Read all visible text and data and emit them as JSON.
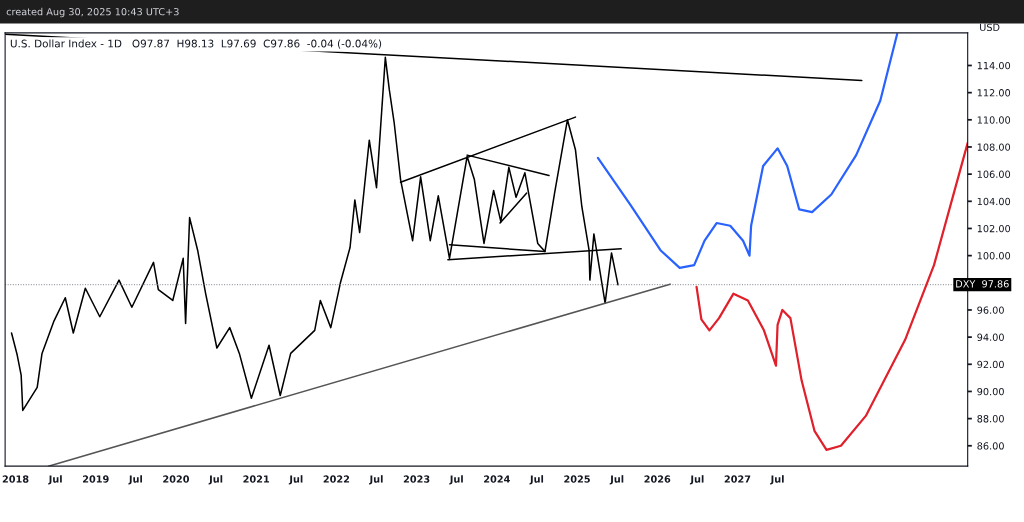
{
  "chart_data": {
    "type": "line",
    "title": "U.S. Dollar Index - 1D   O97.87  H98.13  L97.69  C97.86  -0.04 (-0.04%)",
    "ylabel": "USD",
    "annotations": [
      "created Aug 30, 2025 10:43 UTC+3"
    ],
    "xlim": [
      2017.87,
      2029.87
    ],
    "ylim": [
      84.5,
      116.4
    ],
    "xticks": [
      {
        "value": 2018,
        "label": "2018"
      },
      {
        "value": 2018.5,
        "label": "Jul"
      },
      {
        "value": 2019,
        "label": "2019"
      },
      {
        "value": 2019.5,
        "label": "Jul"
      },
      {
        "value": 2020,
        "label": "2020"
      },
      {
        "value": 2020.5,
        "label": "Jul"
      },
      {
        "value": 2021,
        "label": "2021"
      },
      {
        "value": 2021.5,
        "label": "Jul"
      },
      {
        "value": 2022,
        "label": "2022"
      },
      {
        "value": 2022.5,
        "label": "Jul"
      },
      {
        "value": 2023,
        "label": "2023"
      },
      {
        "value": 2023.5,
        "label": "Jul"
      },
      {
        "value": 2024,
        "label": "2024"
      },
      {
        "value": 2024.5,
        "label": "Jul"
      },
      {
        "value": 2025,
        "label": "2025"
      },
      {
        "value": 2025.5,
        "label": "Jul"
      },
      {
        "value": 2026,
        "label": "2026"
      },
      {
        "value": 2026.5,
        "label": "Jul"
      },
      {
        "value": 2027,
        "label": "2027"
      },
      {
        "value": 2027.5,
        "label": "Jul"
      }
    ],
    "yticks": [
      {
        "value": 86,
        "label": "86.00"
      },
      {
        "value": 88,
        "label": "88.00"
      },
      {
        "value": 90,
        "label": "90.00"
      },
      {
        "value": 92,
        "label": "92.00"
      },
      {
        "value": 94,
        "label": "94.00"
      },
      {
        "value": 96,
        "label": "96.00"
      },
      {
        "value": 100,
        "label": "100.00"
      },
      {
        "value": 102,
        "label": "102.00"
      },
      {
        "value": 104,
        "label": "104.00"
      },
      {
        "value": 106,
        "label": "106.00"
      },
      {
        "value": 108,
        "label": "108.00"
      },
      {
        "value": 110,
        "label": "110.00"
      },
      {
        "value": 112,
        "label": "112.00"
      },
      {
        "value": 114,
        "label": "114.00"
      }
    ],
    "grid": false,
    "legend": false,
    "ref_lines": [
      {
        "axis": "y",
        "value": 97.86,
        "label": "DXY  97.86",
        "line_style": "dotted",
        "color": "#787b86"
      }
    ],
    "series": [
      {
        "color": "#000000",
        "x": [
          2017.95,
          2018.02,
          2018.07,
          2018.09,
          2018.27,
          2018.33,
          2018.48,
          2018.62,
          2018.72,
          2018.87,
          2019.05,
          2019.29,
          2019.45,
          2019.72,
          2019.78,
          2019.96,
          2020.09,
          2020.12,
          2020.17,
          2020.27,
          2020.37,
          2020.51,
          2020.67,
          2020.79,
          2020.94,
          2021.16,
          2021.3,
          2021.43,
          2021.73,
          2021.8,
          2021.93,
          2022.05,
          2022.17,
          2022.23,
          2022.29,
          2022.41,
          2022.5,
          2022.61,
          2022.66,
          2022.72,
          2022.8,
          2022.95,
          2023.05,
          2023.17,
          2023.27,
          2023.41,
          2023.63,
          2023.72,
          2023.84,
          2023.96,
          2024.05,
          2024.15,
          2024.24,
          2024.35,
          2024.51,
          2024.6,
          2024.72,
          2024.88,
          2024.98,
          2025.06,
          2025.15,
          2025.16,
          2025.21,
          2025.35,
          2025.43,
          2025.51
        ],
        "values": [
          94.3,
          92.7,
          91.2,
          88.6,
          90.3,
          92.8,
          95.2,
          96.9,
          94.3,
          97.6,
          95.5,
          98.2,
          96.2,
          99.5,
          97.5,
          96.7,
          99.8,
          95.0,
          102.8,
          100.4,
          97.2,
          93.2,
          94.7,
          92.8,
          89.5,
          93.4,
          89.7,
          92.8,
          94.5,
          96.7,
          94.7,
          98.0,
          100.6,
          104.1,
          101.7,
          108.5,
          105.0,
          114.6,
          112.2,
          109.8,
          105.6,
          101.1,
          105.8,
          101.1,
          104.4,
          99.8,
          107.3,
          105.6,
          100.9,
          104.8,
          102.5,
          106.5,
          104.3,
          106.1,
          100.9,
          100.3,
          104.6,
          110.0,
          107.8,
          103.6,
          100.4,
          98.2,
          101.6,
          96.5,
          100.2,
          97.86
        ]
      },
      {
        "color": "#000000",
        "x": [
          2017.87,
          2028.55
        ],
        "values": [
          116.3,
          112.9
        ]
      },
      {
        "color": "#555555",
        "x": [
          2018.41,
          2026.16
        ],
        "values": [
          84.5,
          97.9
        ]
      },
      {
        "color": "#000000",
        "x": [
          2022.8,
          2024.98
        ],
        "values": [
          105.4,
          110.2
        ]
      },
      {
        "color": "#000000",
        "x": [
          2023.39,
          2025.55
        ],
        "values": [
          99.7,
          100.5
        ]
      },
      {
        "color": "#000000",
        "x": [
          2023.63,
          2024.65
        ],
        "values": [
          107.4,
          105.9
        ]
      },
      {
        "color": "#000000",
        "x": [
          2023.41,
          2024.6
        ],
        "values": [
          100.8,
          100.3
        ]
      },
      {
        "color": "#000000",
        "x": [
          2024.04,
          2024.37
        ],
        "values": [
          102.4,
          104.6
        ]
      },
      {
        "color": "#2962ff",
        "x": [
          2025.26,
          2025.67,
          2026.04,
          2026.28,
          2026.46,
          2026.59,
          2026.74,
          2026.91,
          2027.07,
          2027.15,
          2027.17,
          2027.32,
          2027.5,
          2027.62,
          2027.77,
          2027.93,
          2028.17,
          2028.48,
          2028.78,
          2028.99
        ],
        "values": [
          107.2,
          103.7,
          100.4,
          99.1,
          99.3,
          101.1,
          102.4,
          102.2,
          101.1,
          100.0,
          102.2,
          106.6,
          107.9,
          106.6,
          103.4,
          103.2,
          104.5,
          107.4,
          111.4,
          116.3
        ]
      },
      {
        "color": "#e0202a",
        "x": [
          2026.49,
          2026.55,
          2026.65,
          2026.77,
          2026.95,
          2027.13,
          2027.33,
          2027.48,
          2027.5,
          2027.56,
          2027.66,
          2027.8,
          2027.96,
          2028.11,
          2028.29,
          2028.6,
          2029.09,
          2029.45,
          2029.87
        ],
        "values": [
          97.7,
          95.3,
          94.5,
          95.4,
          97.2,
          96.7,
          94.5,
          91.9,
          94.9,
          96.0,
          95.4,
          90.8,
          87.1,
          85.7,
          86.0,
          88.2,
          93.8,
          99.3,
          108.3
        ]
      }
    ]
  }
}
